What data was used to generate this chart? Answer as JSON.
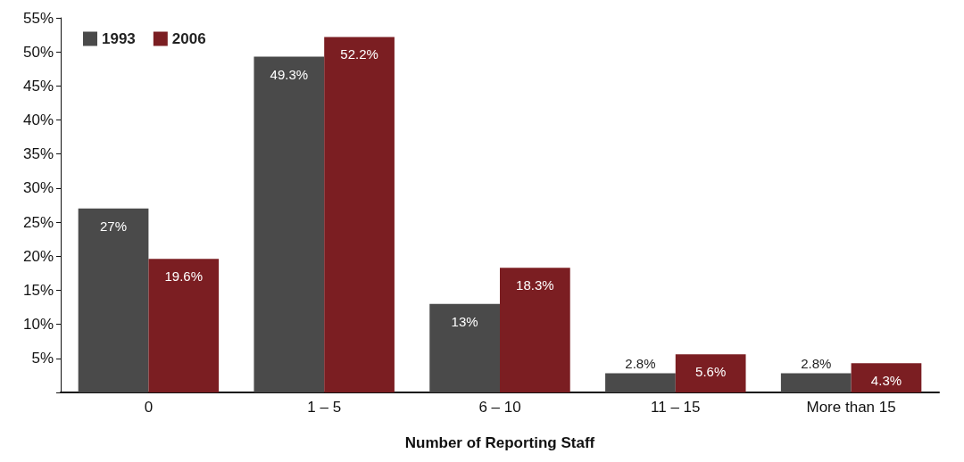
{
  "chart_data": {
    "type": "bar",
    "xlabel": "Number of Reporting Staff",
    "categories": [
      "0",
      "1 – 5",
      "6 – 10",
      "11 – 15",
      "More than 15"
    ],
    "series": [
      {
        "name": "1993",
        "color": "#4a4a4a",
        "values": [
          27,
          49.3,
          13,
          2.8,
          2.8
        ],
        "value_labels": [
          "27%",
          "49.3%",
          "13%",
          "2.8%",
          "2.8%"
        ]
      },
      {
        "name": "2006",
        "color": "#7b1e22",
        "values": [
          19.6,
          52.2,
          18.3,
          5.6,
          4.3
        ],
        "value_labels": [
          "19.6%",
          "52.2%",
          "18.3%",
          "5.6%",
          "4.3%"
        ]
      }
    ],
    "ylim": [
      0,
      55
    ],
    "yticks": [
      {
        "value": 0,
        "label": null
      },
      {
        "value": 5,
        "label": "5%"
      },
      {
        "value": 10,
        "label": "10%"
      },
      {
        "value": 15,
        "label": "15%"
      },
      {
        "value": 20,
        "label": "20%"
      },
      {
        "value": 25,
        "label": "25%"
      },
      {
        "value": 30,
        "label": "30%"
      },
      {
        "value": 35,
        "label": "35%"
      },
      {
        "value": 40,
        "label": "40%"
      },
      {
        "value": 45,
        "label": "45%"
      },
      {
        "value": 50,
        "label": "50%"
      },
      {
        "value": 55,
        "label": "55%"
      }
    ],
    "legend": "top left",
    "grid": false
  }
}
